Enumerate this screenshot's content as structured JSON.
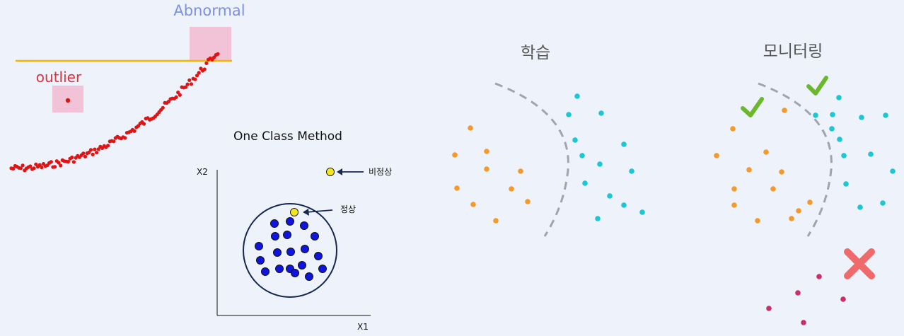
{
  "left_panel": {
    "abnormal_label": "Abnormal",
    "outlier_label": "outlier",
    "colors": {
      "abnormal": "#7b8fe6",
      "outlier": "#e0303c",
      "threshold": "#f5b400",
      "highlight": "#f2c3d6",
      "points": "#e01414"
    }
  },
  "one_class": {
    "title": "One Class Method",
    "axis_y": "X2",
    "axis_x": "X1",
    "anomaly_label": "비정상",
    "normal_label": "정상",
    "colors": {
      "normal_points": "#1014e0",
      "query_points": "#f4e81a",
      "boundary": "#142850"
    }
  },
  "training": {
    "title": "학습",
    "colors": {
      "class_a": "#f59a2a",
      "class_b": "#1cc6d4",
      "boundary": "#a0a4ac"
    }
  },
  "monitoring": {
    "title": "모니터링",
    "colors": {
      "check": "#6bb82c",
      "cross": "#ef6b6b",
      "novel": "#cc2e6a"
    }
  }
}
